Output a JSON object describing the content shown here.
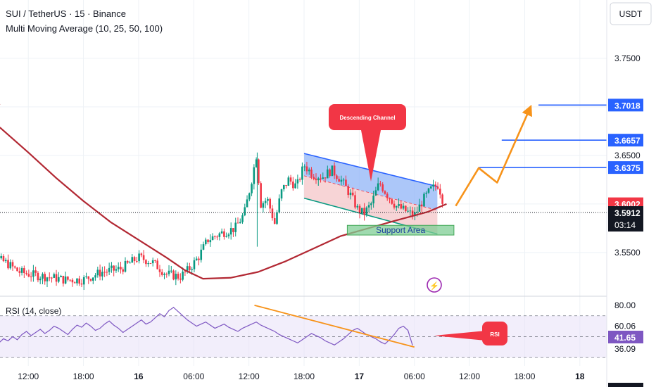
{
  "header": {
    "symbol_line": "SUI / TetherUS · 15 · Binance",
    "indicator_line": "Multi Moving Average (10, 25, 50, 100)",
    "currency_button": "USDT"
  },
  "colors": {
    "grid": "#eef2f6",
    "up": "#089981",
    "down": "#f23645",
    "ma": "#b22833",
    "channel_top": "#2962ff",
    "channel_bottom": "#089981",
    "channel_fill_top": "#90b4f7",
    "channel_fill_bottom": "#f4c5c8",
    "level_line": "#2962ff",
    "arrow": "#f7931a",
    "callout": "#f23645",
    "support_fill": "#7fce94",
    "support_text": "#1c3f9e",
    "rsi_line": "#7e57c2",
    "rsi_band": "#e8e0f7",
    "rsi_divergence": "#f7931a",
    "last_price_bg": "#131722",
    "last_close_bg": "#f23645",
    "rsi_value_bg": "#7e57c2"
  },
  "annotations": {
    "descending_channel": "Descending Channel",
    "support_area": "Support Area",
    "rsi_callout": "RSI",
    "lightning_icon": "⚡"
  },
  "chart_data": [
    {
      "type": "candlestick",
      "pair": "SUI / TetherUS",
      "interval": "15",
      "exchange": "Binance",
      "overlay": "Multi Moving Average (10, 25, 50, 100)",
      "x_tick_labels": [
        "12:00",
        "18:00",
        "16",
        "06:00",
        "12:00",
        "18:00",
        "17",
        "06:00",
        "12:00",
        "18:00",
        "18"
      ],
      "x_ticks_hours": [
        12,
        18,
        24,
        30,
        36,
        42,
        48,
        54,
        60,
        66,
        72
      ],
      "y_tick_labels": [
        "3.7500",
        "3.6500",
        "3.5500"
      ],
      "y_ticks": [
        3.75,
        3.65,
        3.55
      ],
      "ylim": [
        3.505,
        3.81
      ],
      "price_labels": [
        {
          "value": 3.7018,
          "text": "3.7018"
        },
        {
          "value": 3.6657,
          "text": "3.6657"
        },
        {
          "value": 3.6375,
          "text": "3.6375"
        },
        {
          "value": 3.6002,
          "text": "3.6002"
        },
        {
          "value": 3.5912,
          "text": "3.5912",
          "countdown": "03:14"
        }
      ],
      "horizontal_levels": [
        {
          "value": 3.7018,
          "from_hour": 67.5
        },
        {
          "value": 3.6657,
          "from_hour": 63.5
        },
        {
          "value": 3.6375,
          "from_hour": 61.0
        }
      ],
      "last_price": 3.5912,
      "moving_average": {
        "hours": [
          6.5,
          9,
          12,
          15,
          18,
          21,
          24,
          27,
          29,
          31,
          34,
          37,
          40,
          43,
          46,
          49,
          52,
          55.5,
          57.5
        ],
        "values": [
          3.695,
          3.678,
          3.653,
          3.627,
          3.603,
          3.581,
          3.563,
          3.545,
          3.532,
          3.523,
          3.524,
          3.53,
          3.541,
          3.554,
          3.567,
          3.575,
          3.583,
          3.592,
          3.6
        ]
      },
      "channel": {
        "upper": {
          "from": {
            "hour": 42.0,
            "value": 3.652
          },
          "to": {
            "hour": 56.5,
            "value": 3.618
          }
        },
        "lower": {
          "from": {
            "hour": 42.0,
            "value": 3.606
          },
          "to": {
            "hour": 56.5,
            "value": 3.569
          }
        }
      },
      "support_area": {
        "from_hour": 46.7,
        "to_hour": 58.3,
        "low": 3.568,
        "high": 3.578
      },
      "projection": {
        "hours": [
          58.5,
          61.0,
          63.0,
          66.5
        ],
        "values": [
          3.598,
          3.637,
          3.622,
          3.697
        ]
      },
      "candles": {
        "start_hour": 6.3,
        "interval_hours": 0.25,
        "ohlc": []
      }
    },
    {
      "type": "line",
      "title": "RSI (14, close)",
      "y_tick_labels": [
        "80.00",
        "60.06",
        "36.09"
      ],
      "guide_levels": [
        70,
        50,
        30
      ],
      "ylim": [
        22,
        88
      ],
      "current_value": 41.65,
      "value_labels": [
        "80.00",
        "60.06",
        "41.65",
        "36.09"
      ],
      "divergence_line": {
        "from": {
          "hour": 36.6,
          "value": 80
        },
        "to": {
          "hour": 54.0,
          "value": 40
        }
      },
      "series": {
        "start_hour": 6.3,
        "interval_hours": 0.5,
        "values": [
          40,
          38,
          42,
          45,
          41,
          44,
          48,
          46,
          50,
          47,
          52,
          55,
          51,
          54,
          57,
          53,
          56,
          60,
          58,
          55,
          52,
          57,
          61,
          59,
          63,
          60,
          56,
          58,
          62,
          65,
          61,
          58,
          54,
          57,
          60,
          63,
          66,
          62,
          64,
          68,
          72,
          69,
          75,
          78,
          74,
          70,
          66,
          63,
          60,
          62,
          64,
          61,
          58,
          60,
          62,
          59,
          57,
          55,
          58,
          60,
          62,
          64,
          61,
          59,
          57,
          55,
          52,
          50,
          48,
          46,
          44,
          47,
          50,
          53,
          51,
          49,
          46,
          44,
          42,
          45,
          48,
          52,
          56,
          58,
          55,
          52,
          50,
          48,
          45,
          43,
          47,
          52,
          58,
          60,
          56,
          41.65
        ]
      }
    }
  ]
}
